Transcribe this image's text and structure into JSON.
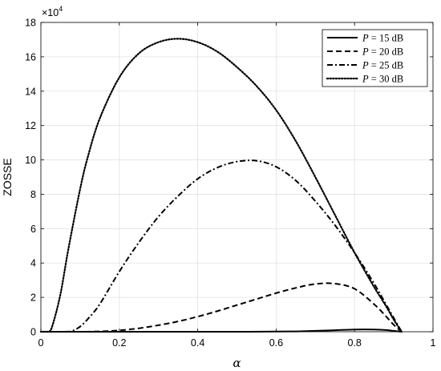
{
  "chart_data": {
    "type": "line",
    "title": "",
    "xlabel": "α",
    "ylabel": "ZOSSE",
    "y_multiplier": {
      "base": "×10",
      "exponent": "4"
    },
    "xlim": [
      0,
      1
    ],
    "ylim": [
      0,
      18
    ],
    "x_ticks": [
      "0",
      "0.2",
      "0.4",
      "0.6",
      "0.8",
      "1"
    ],
    "y_ticks": [
      "0",
      "2",
      "4",
      "6",
      "8",
      "10",
      "12",
      "14",
      "16",
      "18"
    ],
    "grid": true,
    "legend_position": "top-right",
    "series": [
      {
        "name": "P = 15 dB",
        "legend": {
          "symbol": "P",
          "rest": " = 15 dB"
        },
        "style": "solid",
        "x": [
          0.0,
          0.1,
          0.2,
          0.3,
          0.4,
          0.5,
          0.6,
          0.65,
          0.7,
          0.75,
          0.8,
          0.85,
          0.88,
          0.9,
          0.92
        ],
        "y": [
          0.0,
          0.0,
          0.0,
          0.0,
          0.0,
          0.0,
          0.01,
          0.02,
          0.05,
          0.09,
          0.13,
          0.13,
          0.1,
          0.05,
          0.0
        ]
      },
      {
        "name": "P = 20 dB",
        "legend": {
          "symbol": "P",
          "rest": " = 20 dB"
        },
        "style": "dashed",
        "x": [
          0.0,
          0.1,
          0.15,
          0.2,
          0.25,
          0.3,
          0.35,
          0.4,
          0.45,
          0.5,
          0.55,
          0.6,
          0.65,
          0.7,
          0.75,
          0.8,
          0.85,
          0.88,
          0.9,
          0.92
        ],
        "y": [
          0.0,
          0.0,
          0.02,
          0.08,
          0.2,
          0.38,
          0.6,
          0.88,
          1.2,
          1.55,
          1.9,
          2.25,
          2.55,
          2.78,
          2.8,
          2.5,
          1.6,
          0.9,
          0.4,
          0.0
        ]
      },
      {
        "name": "P = 25 dB",
        "legend": {
          "symbol": "P",
          "rest": " = 25 dB"
        },
        "style": "dashdot",
        "x": [
          0.0,
          0.06,
          0.08,
          0.1,
          0.12,
          0.15,
          0.2,
          0.25,
          0.3,
          0.35,
          0.4,
          0.45,
          0.5,
          0.55,
          0.6,
          0.65,
          0.7,
          0.75,
          0.8,
          0.85,
          0.88,
          0.9,
          0.92
        ],
        "y": [
          0.0,
          0.0,
          0.05,
          0.3,
          0.75,
          1.6,
          3.5,
          5.2,
          6.7,
          7.9,
          8.9,
          9.55,
          9.9,
          9.95,
          9.6,
          8.8,
          7.6,
          6.2,
          4.6,
          2.8,
          1.6,
          0.8,
          0.0
        ]
      },
      {
        "name": "P = 30 dB",
        "legend": {
          "symbol": "P",
          "rest": " = 30 dB"
        },
        "style": "dotted",
        "x": [
          0.0,
          0.02,
          0.03,
          0.05,
          0.07,
          0.1,
          0.12,
          0.15,
          0.2,
          0.25,
          0.3,
          0.35,
          0.4,
          0.45,
          0.5,
          0.55,
          0.6,
          0.65,
          0.7,
          0.75,
          0.8,
          0.85,
          0.88,
          0.9,
          0.92
        ],
        "y": [
          0.0,
          0.0,
          0.4,
          2.2,
          4.8,
          8.3,
          10.2,
          12.4,
          14.8,
          16.2,
          16.85,
          17.05,
          16.85,
          16.3,
          15.4,
          14.3,
          12.9,
          11.1,
          9.0,
          6.8,
          4.6,
          2.6,
          1.5,
          0.7,
          0.0
        ]
      }
    ]
  }
}
